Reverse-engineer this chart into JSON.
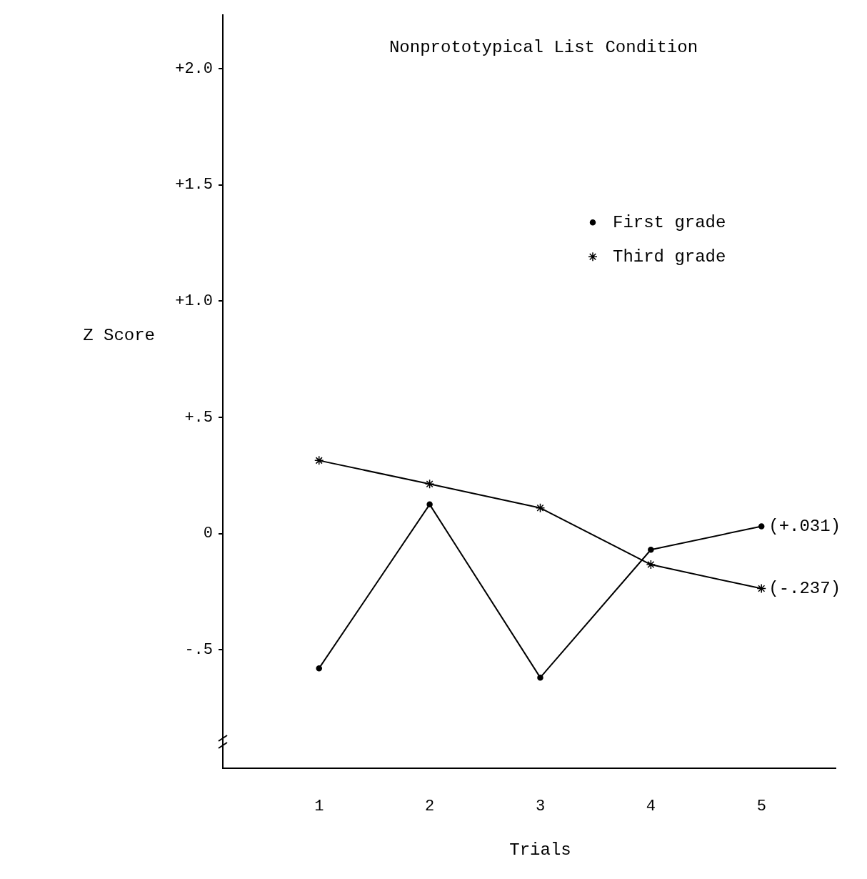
{
  "chart_data": {
    "type": "line",
    "title": "Nonprototypical List Condition",
    "xlabel": "Trials",
    "ylabel": "Z Score",
    "x": [
      1,
      2,
      3,
      4,
      5
    ],
    "series": [
      {
        "name": "First grade",
        "color": "#000000",
        "marker": "circle",
        "values": [
          -0.58,
          0.125,
          -0.62,
          -0.07,
          0.031
        ],
        "value_labels": [
          null,
          null,
          null,
          null,
          "(+.031)"
        ]
      },
      {
        "name": "Third grade",
        "color": "#000000",
        "marker": "cross",
        "values": [
          0.314,
          0.213,
          0.11,
          -0.134,
          -0.237
        ],
        "value_labels": [
          null,
          null,
          null,
          null,
          "(-.237)"
        ]
      }
    ],
    "xlim": [
      0.13,
      5.67
    ],
    "xticks": [
      1,
      2,
      3,
      4,
      5
    ],
    "ylim": [
      -1.01,
      2.23
    ],
    "yticks": [
      {
        "value": -0.5,
        "label": "-.5"
      },
      {
        "value": 0,
        "label": "0"
      },
      {
        "value": 0.5,
        "label": "+.5"
      },
      {
        "value": 1,
        "label": "+1.0"
      },
      {
        "value": 1.5,
        "label": "+1.5"
      },
      {
        "value": 2,
        "label": "+2.0"
      }
    ],
    "grid": false,
    "legend": "top right",
    "line_style": "solid"
  }
}
